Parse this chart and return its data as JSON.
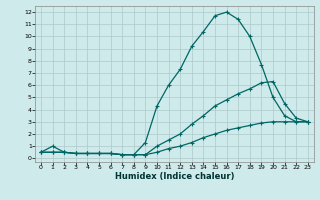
{
  "xlabel": "Humidex (Indice chaleur)",
  "ylabel": "",
  "bg_color": "#ceeaea",
  "grid_color": "#adc8c8",
  "line_color": "#006666",
  "xlim": [
    -0.5,
    23.5
  ],
  "ylim": [
    -0.3,
    12.5
  ],
  "xticks": [
    0,
    1,
    2,
    3,
    4,
    5,
    6,
    7,
    8,
    9,
    10,
    11,
    12,
    13,
    14,
    15,
    16,
    17,
    18,
    19,
    20,
    21,
    22,
    23
  ],
  "yticks": [
    0,
    1,
    2,
    3,
    4,
    5,
    6,
    7,
    8,
    9,
    10,
    11,
    12
  ],
  "curve1_x": [
    0,
    1,
    2,
    3,
    4,
    5,
    6,
    7,
    8,
    9,
    10,
    11,
    12,
    13,
    14,
    15,
    16,
    17,
    18,
    19,
    20,
    21,
    22,
    23
  ],
  "curve1_y": [
    0.5,
    1.0,
    0.5,
    0.4,
    0.4,
    0.4,
    0.4,
    0.3,
    0.3,
    1.3,
    4.3,
    6.0,
    7.3,
    9.2,
    10.4,
    11.7,
    12.0,
    11.4,
    10.0,
    7.7,
    5.0,
    3.5,
    3.0,
    3.0
  ],
  "curve2_x": [
    0,
    1,
    2,
    3,
    4,
    5,
    6,
    7,
    8,
    9,
    10,
    11,
    12,
    13,
    14,
    15,
    16,
    17,
    18,
    19,
    20,
    21,
    22,
    23
  ],
  "curve2_y": [
    0.5,
    0.5,
    0.5,
    0.4,
    0.4,
    0.4,
    0.4,
    0.3,
    0.3,
    0.3,
    1.0,
    1.5,
    2.0,
    2.8,
    3.5,
    4.3,
    4.8,
    5.3,
    5.7,
    6.2,
    6.3,
    4.5,
    3.3,
    3.0
  ],
  "curve3_x": [
    0,
    1,
    2,
    3,
    4,
    5,
    6,
    7,
    8,
    9,
    10,
    11,
    12,
    13,
    14,
    15,
    16,
    17,
    18,
    19,
    20,
    21,
    22,
    23
  ],
  "curve3_y": [
    0.5,
    0.5,
    0.5,
    0.4,
    0.4,
    0.4,
    0.4,
    0.3,
    0.3,
    0.3,
    0.5,
    0.8,
    1.0,
    1.3,
    1.7,
    2.0,
    2.3,
    2.5,
    2.7,
    2.9,
    3.0,
    3.0,
    3.0,
    3.0
  ],
  "label_fontsize": 5.5,
  "tick_fontsize": 4.5,
  "xlabel_fontsize": 6.0
}
